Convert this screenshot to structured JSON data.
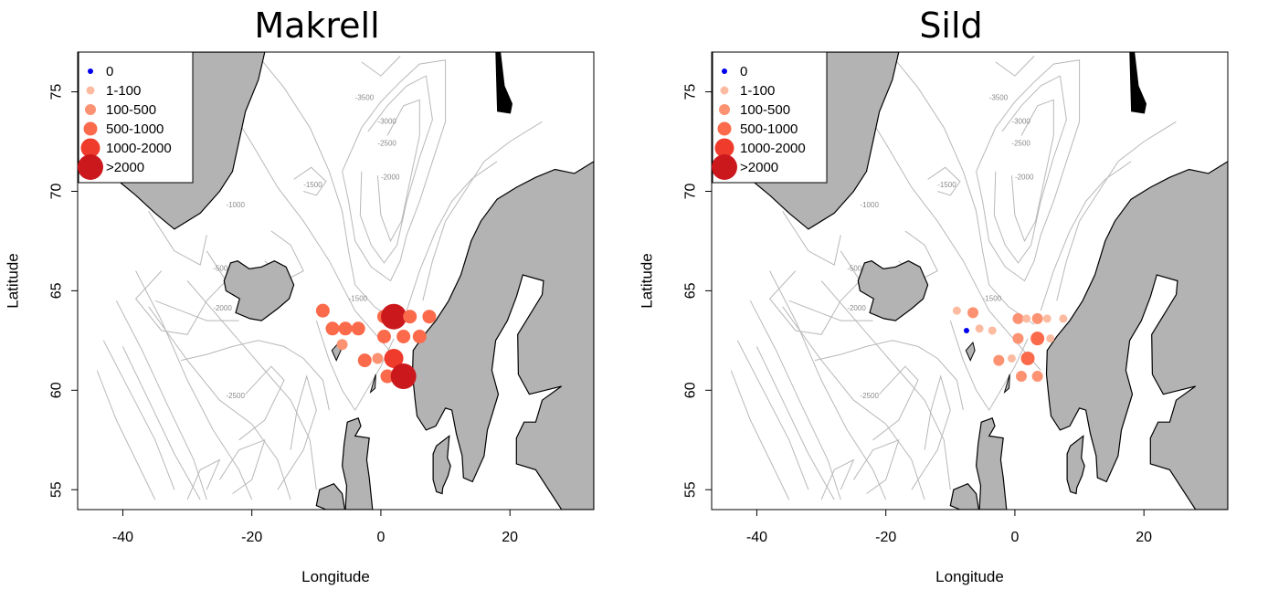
{
  "panels": [
    {
      "title": "Makrell",
      "xlabel": "Longitude",
      "ylabel": "Latitude",
      "x_ticks": [
        "-40",
        "-20",
        "0",
        "20"
      ],
      "y_ticks": [
        "55",
        "60",
        "65",
        "70",
        "75"
      ],
      "legend": [
        "0",
        "1-100",
        "100-500",
        "500-1000",
        "1000-2000",
        ">2000"
      ]
    },
    {
      "title": "Sild",
      "xlabel": "Longitude",
      "ylabel": "Latitude",
      "x_ticks": [
        "-40",
        "-20",
        "0",
        "20"
      ],
      "y_ticks": [
        "55",
        "60",
        "65",
        "70",
        "75"
      ],
      "legend": [
        "0",
        "1-100",
        "100-500",
        "500-1000",
        "1000-2000",
        ">2000"
      ]
    }
  ],
  "depth_labels": [
    "-3500",
    "-3000",
    "-2500",
    "-2000",
    "-1500",
    "-1000",
    "-500",
    "-3000",
    "-2000",
    "-1500",
    "-2500"
  ],
  "map": {
    "xlim": [
      -47,
      33
    ],
    "ylim": [
      54,
      77
    ],
    "legend_colors": [
      "#0000ee",
      "#fcbba1",
      "#fc9272",
      "#fb6a4a",
      "#ef3b2c",
      "#cb181d"
    ],
    "land_color": "#b3b3b3",
    "contour_color": "#b8b8b8"
  },
  "chart_data": [
    {
      "type": "scatter",
      "title": "Makrell",
      "xlabel": "Longitude",
      "ylabel": "Latitude",
      "xlim": [
        -47,
        33
      ],
      "ylim": [
        54,
        77
      ],
      "legend_placement": "top-left",
      "categories": [
        "0",
        "1-100",
        "100-500",
        "500-1000",
        "1000-2000",
        ">2000"
      ],
      "points": [
        {
          "lon": -9.0,
          "lat": 64.0,
          "cls": 3
        },
        {
          "lon": -7.5,
          "lat": 63.1,
          "cls": 3
        },
        {
          "lon": -5.5,
          "lat": 63.1,
          "cls": 3
        },
        {
          "lon": -3.5,
          "lat": 63.1,
          "cls": 3
        },
        {
          "lon": 0.5,
          "lat": 63.7,
          "cls": 3
        },
        {
          "lon": 2.0,
          "lat": 63.7,
          "cls": 5
        },
        {
          "lon": 4.5,
          "lat": 63.7,
          "cls": 3
        },
        {
          "lon": 7.5,
          "lat": 63.7,
          "cls": 3
        },
        {
          "lon": -6.0,
          "lat": 62.3,
          "cls": 2
        },
        {
          "lon": 0.5,
          "lat": 62.7,
          "cls": 3
        },
        {
          "lon": 3.5,
          "lat": 62.7,
          "cls": 3
        },
        {
          "lon": 6.0,
          "lat": 62.7,
          "cls": 3
        },
        {
          "lon": 2.0,
          "lat": 61.6,
          "cls": 4
        },
        {
          "lon": -0.5,
          "lat": 61.6,
          "cls": 2
        },
        {
          "lon": -2.5,
          "lat": 61.5,
          "cls": 3
        },
        {
          "lon": 1.0,
          "lat": 60.7,
          "cls": 3
        },
        {
          "lon": 3.5,
          "lat": 60.7,
          "cls": 5
        }
      ]
    },
    {
      "type": "scatter",
      "title": "Sild",
      "xlabel": "Longitude",
      "ylabel": "Latitude",
      "xlim": [
        -47,
        33
      ],
      "ylim": [
        54,
        77
      ],
      "legend_placement": "top-left",
      "categories": [
        "0",
        "1-100",
        "100-500",
        "500-1000",
        "1000-2000",
        ">2000"
      ],
      "points": [
        {
          "lon": -7.5,
          "lat": 63.0,
          "cls": 0
        },
        {
          "lon": -9.0,
          "lat": 64.0,
          "cls": 1
        },
        {
          "lon": -6.5,
          "lat": 63.9,
          "cls": 2
        },
        {
          "lon": -5.5,
          "lat": 63.1,
          "cls": 1
        },
        {
          "lon": -3.5,
          "lat": 63.0,
          "cls": 1
        },
        {
          "lon": 0.5,
          "lat": 63.6,
          "cls": 2
        },
        {
          "lon": 1.8,
          "lat": 63.6,
          "cls": 1
        },
        {
          "lon": 3.5,
          "lat": 63.6,
          "cls": 2
        },
        {
          "lon": 5.0,
          "lat": 63.6,
          "cls": 1
        },
        {
          "lon": 7.5,
          "lat": 63.6,
          "cls": 1
        },
        {
          "lon": 0.5,
          "lat": 62.6,
          "cls": 2
        },
        {
          "lon": 3.5,
          "lat": 62.6,
          "cls": 3
        },
        {
          "lon": 5.5,
          "lat": 62.6,
          "cls": 1
        },
        {
          "lon": -2.5,
          "lat": 61.5,
          "cls": 2
        },
        {
          "lon": -0.5,
          "lat": 61.6,
          "cls": 1
        },
        {
          "lon": 2.0,
          "lat": 61.6,
          "cls": 3
        },
        {
          "lon": 1.0,
          "lat": 60.7,
          "cls": 2
        },
        {
          "lon": 3.5,
          "lat": 60.7,
          "cls": 2
        }
      ]
    }
  ]
}
